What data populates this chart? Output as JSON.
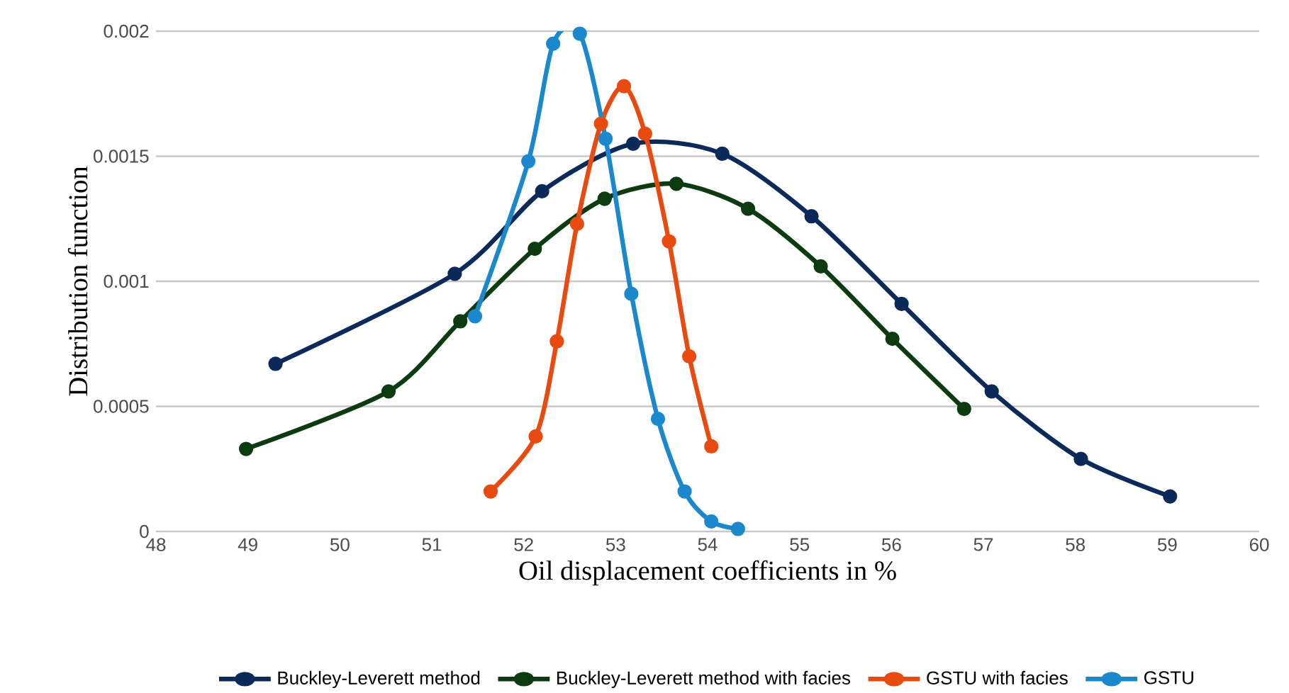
{
  "chart_data": {
    "type": "line",
    "xlabel": "Oil displacement coefficients in %",
    "ylabel": "Distribution function",
    "xlim": [
      48,
      60
    ],
    "xticks": [
      48,
      49,
      50,
      51,
      52,
      53,
      54,
      55,
      56,
      57,
      58,
      59,
      60
    ],
    "ylim": [
      0,
      0.002
    ],
    "yticks": [
      0,
      0.0005,
      0.001,
      0.0015,
      0.002
    ],
    "grid": "y",
    "legend": "bottom",
    "marker": "circle",
    "line_style": "solid",
    "series": [
      {
        "name": "Buckley-Leverett method",
        "color": "#0b2a5a",
        "x": [
          49.3,
          51.25,
          52.2,
          53.19,
          54.16,
          55.13,
          56.11,
          57.09,
          58.06,
          59.03
        ],
        "values": [
          0.00067,
          0.00103,
          0.00136,
          0.00155,
          0.00151,
          0.00126,
          0.00091,
          0.00056,
          0.00029,
          0.00014
        ]
      },
      {
        "name": "Buckley-Leverett method with facies",
        "color": "#0c3b10",
        "x": [
          48.98,
          50.53,
          51.31,
          52.12,
          52.88,
          53.66,
          54.44,
          55.23,
          56.01,
          56.79
        ],
        "values": [
          0.00033,
          0.00056,
          0.00084,
          0.00113,
          0.00133,
          0.00139,
          0.00129,
          0.00106,
          0.00077,
          0.00049
        ]
      },
      {
        "name": "GSTU with facies",
        "color": "#e84a0f",
        "x": [
          51.64,
          52.13,
          52.36,
          52.58,
          52.84,
          53.09,
          53.32,
          53.58,
          53.8,
          54.04
        ],
        "values": [
          0.00016,
          0.00038,
          0.00076,
          0.00123,
          0.00163,
          0.00178,
          0.00159,
          0.00116,
          0.0007,
          0.00034
        ]
      },
      {
        "name": "GSTU",
        "color": "#1b87cd",
        "x": [
          51.47,
          52.05,
          52.32,
          52.61,
          52.89,
          53.17,
          53.46,
          53.75,
          54.04,
          54.33
        ],
        "values": [
          0.00086,
          0.00148,
          0.00195,
          0.00199,
          0.00157,
          0.00095,
          0.00045,
          0.00016,
          4e-05,
          1e-05
        ]
      }
    ]
  }
}
